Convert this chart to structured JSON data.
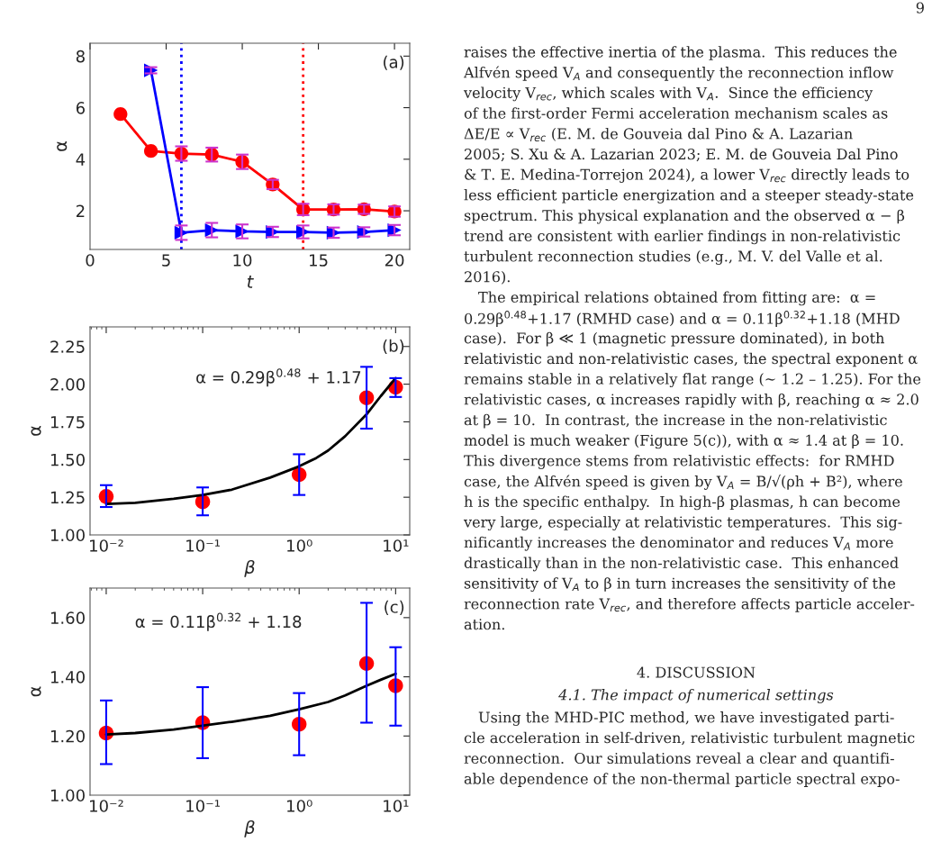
{
  "chart_data": [
    {
      "type": "line",
      "xlabel": "t",
      "ylabel": "α",
      "xlim": [
        0,
        21
      ],
      "ylim": [
        0.5,
        8.5
      ],
      "xticks": [
        0,
        5,
        10,
        15,
        20
      ],
      "yticks": [
        2,
        4,
        6,
        8
      ],
      "grid": false,
      "annotations": [
        "(a)"
      ],
      "series": [
        {
          "color": "#ff0000",
          "marker": "circle",
          "x": [
            2,
            4,
            6,
            8,
            10,
            12,
            14,
            16,
            18,
            20
          ],
          "values": [
            5.75,
            4.32,
            4.22,
            4.18,
            3.9,
            3.02,
            2.05,
            2.05,
            2.06,
            1.97
          ],
          "errors": [
            null,
            null,
            0.28,
            0.27,
            0.28,
            0.18,
            0.22,
            0.2,
            0.18,
            0.2
          ]
        },
        {
          "color": "#0000ff",
          "marker": "triangle",
          "x": [
            4,
            6,
            8,
            10,
            12,
            14,
            16,
            18,
            20
          ],
          "values": [
            7.45,
            1.15,
            1.25,
            1.2,
            1.18,
            1.18,
            1.15,
            1.18,
            1.25
          ],
          "errors": [
            0.12,
            0.28,
            0.28,
            0.27,
            0.2,
            0.25,
            0.2,
            0.18,
            0.2
          ]
        }
      ],
      "ref_lines": [
        {
          "axis": "x",
          "value": 6,
          "color": "#0000ff",
          "line_style": "dotted"
        },
        {
          "axis": "x",
          "value": 14,
          "color": "#ff0000",
          "line_style": "dotted"
        }
      ]
    },
    {
      "type": "scatter",
      "xlabel": "β",
      "ylabel": "α",
      "log": "x",
      "xlim": [
        0.0068,
        14
      ],
      "ylim": [
        1.0,
        2.38
      ],
      "grid": false,
      "xticks": [
        {
          "value": 0.01,
          "label": "10⁻²"
        },
        {
          "value": 0.1,
          "label": "10⁻¹"
        },
        {
          "value": 1,
          "label": "10⁰"
        },
        {
          "value": 10,
          "label": "10¹"
        }
      ],
      "yticks": [
        {
          "value": 1.0,
          "label": "1.00"
        },
        {
          "value": 1.25,
          "label": "1.25"
        },
        {
          "value": 1.5,
          "label": "1.50"
        },
        {
          "value": 1.75,
          "label": "1.75"
        },
        {
          "value": 2.0,
          "label": "2.00"
        },
        {
          "value": 2.25,
          "label": "2.25"
        }
      ],
      "annotations": [
        "(b)",
        "α = 0.29β$^{0.48}$ + 1.17"
      ],
      "series": [
        {
          "type": "line",
          "color": "#000000",
          "marker": "none",
          "x": [
            0.01,
            0.02,
            0.05,
            0.1,
            0.2,
            0.5,
            1,
            1.5,
            2,
            3,
            5,
            7,
            10
          ],
          "values": [
            1.205,
            1.213,
            1.24,
            1.265,
            1.3,
            1.38,
            1.455,
            1.51,
            1.56,
            1.655,
            1.8,
            1.92,
            2.04
          ]
        },
        {
          "color": "#ff0000",
          "marker": "circle",
          "x": [
            0.01,
            0.1,
            1,
            5,
            10
          ],
          "values": [
            1.255,
            1.22,
            1.4,
            1.91,
            1.98
          ],
          "errors": [
            [
              1.185,
              1.33
            ],
            [
              1.13,
              1.315
            ],
            [
              1.265,
              1.535
            ],
            [
              1.705,
              2.115
            ],
            [
              1.915,
              2.04
            ]
          ]
        }
      ]
    },
    {
      "type": "scatter",
      "xlabel": "β",
      "ylabel": "α",
      "log": "x",
      "xlim": [
        0.0068,
        14
      ],
      "ylim": [
        1.0,
        1.7
      ],
      "grid": false,
      "xticks": [
        {
          "value": 0.01,
          "label": "10⁻²"
        },
        {
          "value": 0.1,
          "label": "10⁻¹"
        },
        {
          "value": 1,
          "label": "10⁰"
        },
        {
          "value": 10,
          "label": "10¹"
        }
      ],
      "yticks": [
        {
          "value": 1.0,
          "label": "1.00"
        },
        {
          "value": 1.2,
          "label": "1.20"
        },
        {
          "value": 1.4,
          "label": "1.40"
        },
        {
          "value": 1.6,
          "label": "1.60"
        }
      ],
      "annotations": [
        "(c)",
        "α = 0.11β$^{0.32}$ + 1.18"
      ],
      "series": [
        {
          "type": "line",
          "color": "#000000",
          "marker": "none",
          "x": [
            0.01,
            0.02,
            0.05,
            0.2,
            0.5,
            1,
            2,
            3,
            5,
            7,
            10
          ],
          "values": [
            1.205,
            1.21,
            1.222,
            1.248,
            1.268,
            1.29,
            1.315,
            1.337,
            1.37,
            1.39,
            1.41
          ]
        },
        {
          "color": "#ff0000",
          "marker": "circle",
          "x": [
            0.01,
            0.1,
            1,
            5,
            10
          ],
          "values": [
            1.21,
            1.245,
            1.24,
            1.445,
            1.37
          ],
          "errors": [
            [
              1.105,
              1.32
            ],
            [
              1.125,
              1.365
            ],
            [
              1.135,
              1.345
            ],
            [
              1.245,
              1.65
            ],
            [
              1.235,
              1.5
            ]
          ]
        }
      ]
    },
    {
      "type": "other",
      "annotations": [
        "9",
        "raises the effective inertia of the plasma.  This reduces the",
        "Alfvén speed V$_{A}$ and consequently the reconnection inflow",
        "velocity V$_{rec}$, which scales with V$_{A}$.  Since the efficiency",
        "of the first-order Fermi acceleration mechanism scales as",
        "ΔE/E ∝ V$_{rec}$ (E. M. de Gouveia dal Pino & A. Lazarian",
        "2005; S. Xu & A. Lazarian 2023; E. M. de Gouveia Dal Pino",
        "& T. E. Medina-Torrejon 2024), a lower V$_{rec}$ directly leads to",
        "less efficient particle energization and a steeper steady-state",
        "spectrum. This physical explanation and the observed α − β",
        "trend are consistent with earlier findings in non-relativistic",
        "turbulent reconnection studies (e.g., M. V. del Valle et al.",
        "2016).",
        "The empirical relations obtained from fitting are:  α =",
        "0.29β$^{0.48}$+1.17 (RMHD case) and α = 0.11β$^{0.32}$+1.18 (MHD",
        "case).  For β ≪ 1 (magnetic pressure dominated), in both",
        "relativistic and non-relativistic cases, the spectral exponent α",
        "remains stable in a relatively flat range (∼ 1.2 – 1.25). For the",
        "relativistic cases, α increases rapidly with β, reaching α ≈ 2.0",
        "at β = 10.  In contrast, the increase in the non-relativistic",
        "model is much weaker (Figure 5(c)), with α ≈ 1.4 at β = 10.",
        "This divergence stems from relativistic effects:  for RMHD",
        "case, the Alfvén speed is given by V$_{A}$ = B/√(ρh + B²), where",
        "h is the specific enthalpy.  In high-β plasmas, h can become",
        "very large, especially at relativistic temperatures.  This sig-",
        "nificantly increases the denominator and reduces V$_{A}$ more",
        "drastically than in the non-relativistic case.  This enhanced",
        "sensitivity of V$_{A}$ to β in turn increases the sensitivity of the",
        "reconnection rate V$_{rec}$, and therefore affects particle acceler-",
        "ation.",
        "4. DISCUSSION",
        "4.1. The impact of numerical settings",
        "Using the MHD-PIC method, we have investigated parti-",
        "cle acceleration in self-driven, relativistic turbulent magnetic",
        "reconnection.  Our simulations reveal a clear and quantifi-",
        "able dependence of the non-thermal particle spectral expo-"
      ]
    }
  ]
}
